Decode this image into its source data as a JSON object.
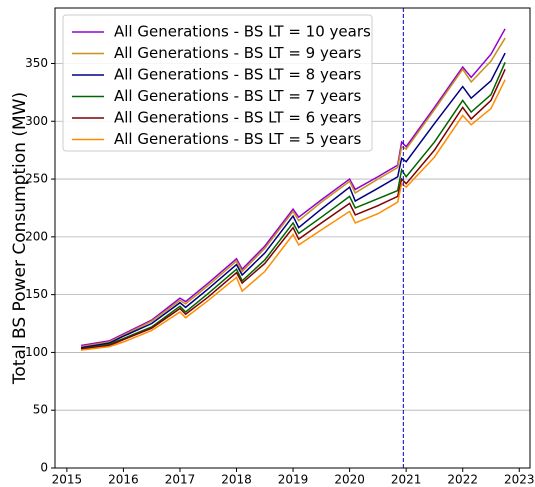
{
  "chart_data": {
    "type": "line",
    "y_label": "Total BS Power Consumption (MW)",
    "x": [
      2015.25,
      2015.75,
      2016,
      2016.5,
      2017,
      2017.1,
      2017.5,
      2018,
      2018.1,
      2018.5,
      2019,
      2019.1,
      2019.5,
      2020,
      2020.1,
      2020.5,
      2020.85,
      2020.92,
      2021,
      2021.5,
      2022,
      2022.15,
      2022.5,
      2022.75
    ],
    "series": [
      {
        "name": "All Generations - BS LT = 10 years",
        "color": "#9400d3",
        "values": [
          106,
          110,
          116,
          128,
          147,
          144,
          160,
          181,
          172,
          192,
          224,
          217,
          232,
          250,
          241,
          252,
          262,
          282,
          278,
          312,
          347,
          338,
          358,
          380
        ]
      },
      {
        "name": "All Generations - BS LT = 9 years",
        "color": "#c8901c",
        "values": [
          105,
          109,
          115,
          127,
          145,
          142,
          158,
          179,
          170,
          190,
          222,
          214,
          230,
          248,
          238,
          250,
          260,
          278,
          276,
          310,
          345,
          334,
          352,
          372
        ]
      },
      {
        "name": "All Generations - BS LT = 8 years",
        "color": "#000080",
        "values": [
          104,
          108,
          114,
          125,
          143,
          139,
          155,
          176,
          167,
          186,
          218,
          208,
          224,
          243,
          231,
          242,
          252,
          268,
          265,
          298,
          330,
          320,
          335,
          359
        ]
      },
      {
        "name": "All Generations - BS LT = 7 years",
        "color": "#006400",
        "values": [
          103,
          107,
          112,
          122,
          140,
          135,
          151,
          172,
          162,
          180,
          212,
          203,
          217,
          235,
          225,
          233,
          240,
          258,
          252,
          282,
          318,
          308,
          323,
          351
        ]
      },
      {
        "name": "All Generations - BS LT = 6 years",
        "color": "#800000",
        "values": [
          103,
          106,
          111,
          121,
          138,
          133,
          148,
          169,
          160,
          177,
          208,
          198,
          212,
          229,
          219,
          227,
          235,
          250,
          246,
          275,
          312,
          302,
          318,
          345
        ]
      },
      {
        "name": "All Generations - BS LT = 5 years",
        "color": "#ff8c00",
        "values": [
          102,
          105,
          109,
          119,
          135,
          130,
          145,
          165,
          153,
          170,
          202,
          193,
          206,
          222,
          212,
          220,
          230,
          246,
          243,
          269,
          305,
          297,
          311,
          336
        ]
      }
    ],
    "vline": 2020.95,
    "vline_color": "#0000cc",
    "xlim": [
      2014.79,
      2023.19
    ],
    "xticks": [
      2015,
      2016,
      2017,
      2018,
      2019,
      2020,
      2021,
      2022,
      2023
    ],
    "ylim": [
      0,
      398
    ],
    "yticks": [
      0,
      50,
      100,
      150,
      200,
      250,
      300,
      350
    ],
    "grid": true,
    "legend": "upper-left"
  }
}
